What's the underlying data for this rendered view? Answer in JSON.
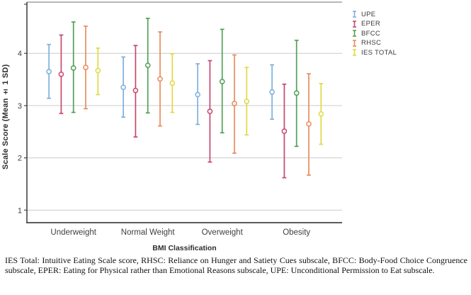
{
  "chart_data": {
    "type": "errorbar",
    "title": "",
    "xlabel": "BMI Classification",
    "ylabel": "Scale Score (Mean ± 1 SD)",
    "ylim": [
      0.76,
      4.98
    ],
    "yticks": [
      1,
      2,
      3,
      4
    ],
    "grid": "horizontal-gridlines",
    "legend_position": "outside-top-right",
    "error_bars": "mean ± 1 SD",
    "categories": [
      "Underweight",
      "Normal Weight",
      "Overweight",
      "Obesity"
    ],
    "series": [
      {
        "name": "UPE",
        "color": "#7EB0DC",
        "means": [
          3.65,
          3.35,
          3.21,
          3.26
        ],
        "upper": [
          4.17,
          3.93,
          3.8,
          3.78
        ],
        "lower": [
          3.14,
          2.78,
          2.64,
          2.74
        ]
      },
      {
        "name": "EPER",
        "color": "#C6496D",
        "means": [
          3.6,
          3.29,
          2.89,
          2.51
        ],
        "upper": [
          4.35,
          4.15,
          3.86,
          3.41
        ],
        "lower": [
          2.85,
          2.4,
          1.92,
          1.62
        ]
      },
      {
        "name": "BFCC",
        "color": "#53A058",
        "means": [
          3.72,
          3.77,
          3.46,
          3.24
        ],
        "upper": [
          4.6,
          4.67,
          4.46,
          4.25
        ],
        "lower": [
          2.87,
          2.86,
          2.48,
          2.22
        ]
      },
      {
        "name": "RHSC",
        "color": "#E88C5E",
        "means": [
          3.73,
          3.51,
          3.04,
          2.65
        ],
        "upper": [
          4.52,
          4.41,
          3.97,
          3.61
        ],
        "lower": [
          2.94,
          2.61,
          2.09,
          1.67
        ]
      },
      {
        "name": "IES TOTAL",
        "color": "#E0DA45",
        "means": [
          3.67,
          3.43,
          3.08,
          2.84
        ],
        "upper": [
          4.1,
          3.99,
          3.73,
          3.42
        ],
        "lower": [
          3.21,
          2.87,
          2.44,
          2.26
        ]
      }
    ],
    "colors": {
      "gridline": "#cccccc",
      "axis": "#454545",
      "top_border": "#8e8e8e",
      "tick_label": "#3f3f3f"
    }
  },
  "caption": "IES Total: Intuitive Eating Scale score, RHSC: Reliance on Hunger and Satiety Cues subscale, BFCC: Body-Food Choice Congruence subscale, EPER: Eating for Physical rather than Emotional Reasons subscale, UPE: Unconditional Permission to Eat subscale."
}
